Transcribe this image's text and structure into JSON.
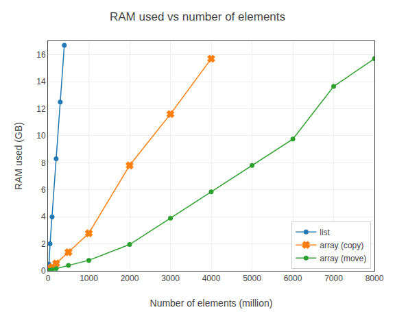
{
  "chart_data": {
    "type": "line",
    "title": "RAM used vs number of elements",
    "x_label": "Number of elements (million)",
    "y_label": "RAM used (GB)",
    "series": [
      {
        "name": "list",
        "color": "#1f77b4",
        "marker": "circle",
        "line_style": "solid",
        "x": [
          10,
          25,
          50,
          100,
          200,
          300,
          400
        ],
        "values": [
          0.05,
          0.5,
          2.0,
          4.0,
          8.3,
          12.5,
          16.7
        ]
      },
      {
        "name": "array (copy)",
        "color": "#ff7f0e",
        "marker": "x",
        "line_style": "solid",
        "x": [
          10,
          25,
          50,
          100,
          200,
          500,
          1000,
          2000,
          3000,
          4000
        ],
        "values": [
          0.03,
          0.07,
          0.13,
          0.28,
          0.55,
          1.38,
          2.78,
          7.8,
          11.6,
          15.7
        ]
      },
      {
        "name": "array (move)",
        "color": "#2ca02c",
        "marker": "circle",
        "line_style": "solid",
        "x": [
          10,
          25,
          50,
          100,
          200,
          500,
          1000,
          2000,
          3000,
          4000,
          5000,
          6000,
          7000,
          8000
        ],
        "values": [
          0.01,
          0.02,
          0.04,
          0.08,
          0.17,
          0.4,
          0.78,
          1.95,
          3.9,
          5.85,
          7.8,
          9.75,
          13.65,
          15.7
        ]
      }
    ],
    "xlim": [
      0,
      8000
    ],
    "ylim": [
      0,
      17
    ],
    "xticks": [
      0,
      1000,
      2000,
      3000,
      4000,
      5000,
      6000,
      7000,
      8000
    ],
    "yticks": [
      0,
      2,
      4,
      6,
      8,
      10,
      12,
      14,
      16
    ],
    "legend": "lower right",
    "grid": true
  }
}
